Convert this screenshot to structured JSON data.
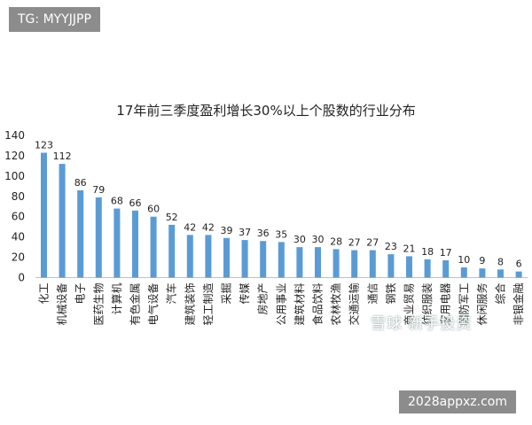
{
  "badge_tg": "TG: MYYJJPP",
  "badge_url": "2028appxz.com",
  "watermark": "雪球  新手投资",
  "colors": {
    "bar": "#5b9bd5",
    "axis": "#bfbfbf",
    "text": "#222222"
  },
  "chart_data": {
    "type": "bar",
    "title": "17年前三季度盈利增长30%以上个股数的行业分布",
    "xlabel": "",
    "ylabel": "",
    "ylim": [
      0,
      140
    ],
    "yticks": [
      0,
      20,
      40,
      60,
      80,
      100,
      120,
      140
    ],
    "grid": false,
    "categories": [
      "化工",
      "机械设备",
      "电子",
      "医药生物",
      "计算机",
      "有色金属",
      "电气设备",
      "汽车",
      "建筑装饰",
      "轻工制造",
      "采掘",
      "传媒",
      "房地产",
      "公用事业",
      "建筑材料",
      "食品饮料",
      "农林牧渔",
      "交通运输",
      "通信",
      "钢铁",
      "商业贸易",
      "纺织服装",
      "家用电器",
      "国防军工",
      "休闲服务",
      "综合",
      "非银金融"
    ],
    "values": [
      123,
      112,
      86,
      79,
      68,
      66,
      60,
      52,
      42,
      42,
      39,
      37,
      36,
      35,
      30,
      30,
      28,
      27,
      27,
      23,
      21,
      18,
      17,
      10,
      9,
      8,
      6
    ]
  }
}
